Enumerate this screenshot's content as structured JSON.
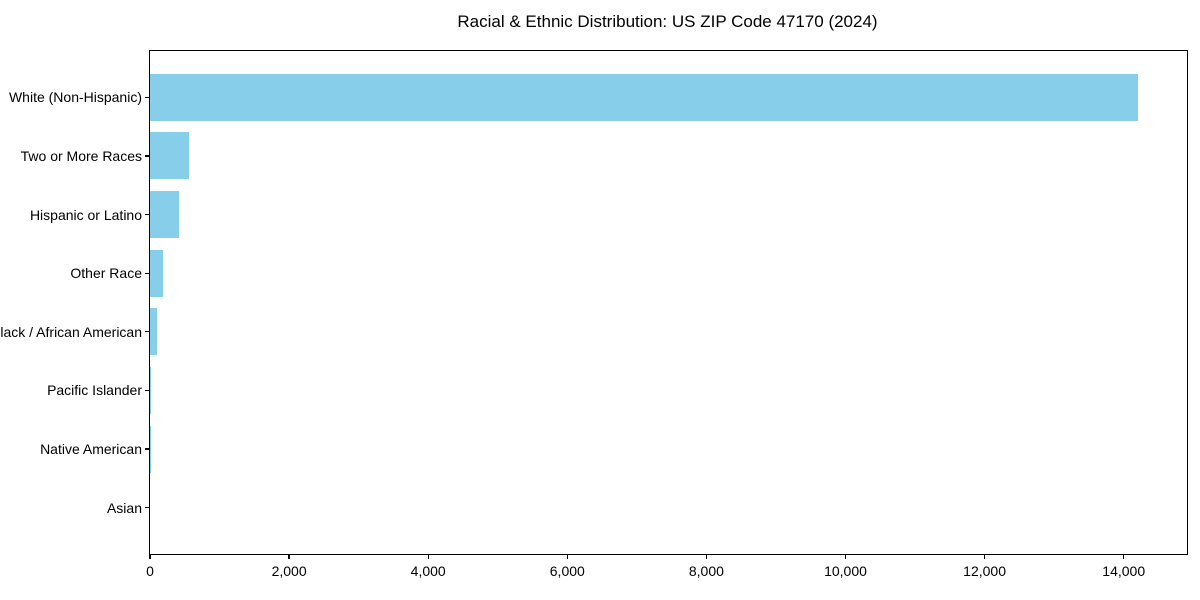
{
  "title": "Racial & Ethnic Distribution: US ZIP Code 47170 (2024)",
  "chart_data": {
    "type": "bar",
    "orientation": "horizontal",
    "title": "Racial & Ethnic Distribution: US ZIP Code 47170 (2024)",
    "categories": [
      "White (Non-Hispanic)",
      "Two or More Races",
      "Hispanic or Latino",
      "Other Race",
      "Black / African American",
      "Pacific Islander",
      "Native American",
      "Asian"
    ],
    "values": [
      14200,
      555,
      410,
      185,
      95,
      15,
      5,
      0
    ],
    "category_order": "sorted descending, largest at top",
    "xlabel": "",
    "ylabel": "",
    "xlim": [
      0,
      14910
    ],
    "xticks": [
      0,
      2000,
      4000,
      6000,
      8000,
      10000,
      12000,
      14000
    ],
    "xtick_labels": [
      "0",
      "2,000",
      "4,000",
      "6,000",
      "8,000",
      "10,000",
      "12,000",
      "14,000"
    ],
    "bar_color": "#87CEEB",
    "axis_color": "#000000",
    "background": "#ffffff",
    "grid": false,
    "legend": "none",
    "bar_height_fraction": 0.8
  }
}
